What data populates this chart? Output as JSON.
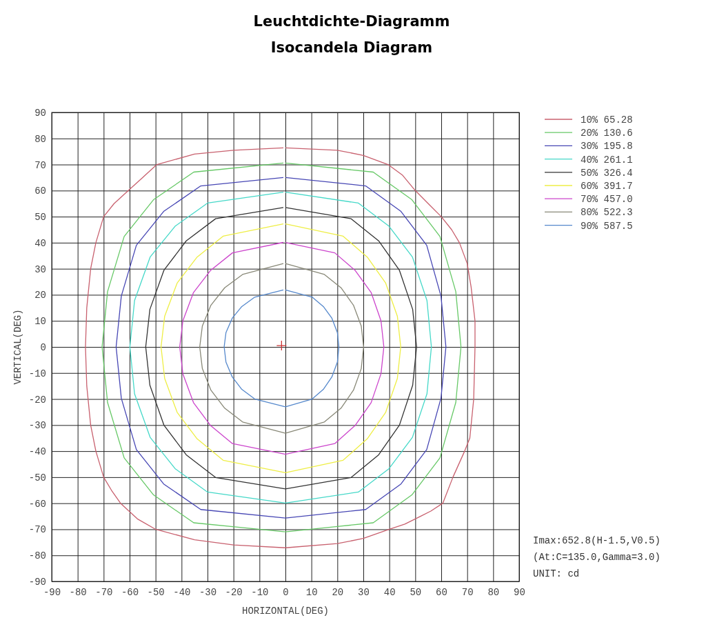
{
  "chart_data": {
    "type": "line",
    "title": "Leuchtdichte-Diagramm\nIsocandela Diagram",
    "xlabel": "HORIZONTAL(DEG)",
    "ylabel": "VERTICAL(DEG)",
    "xlim": [
      -90,
      90
    ],
    "ylim": [
      -90,
      90
    ],
    "xticks": [
      -90,
      -80,
      -70,
      -60,
      -50,
      -40,
      -30,
      -20,
      -10,
      0,
      10,
      20,
      30,
      40,
      50,
      60,
      70,
      80,
      90
    ],
    "yticks": [
      -90,
      -80,
      -70,
      -60,
      -50,
      -40,
      -30,
      -20,
      -10,
      0,
      10,
      20,
      30,
      40,
      50,
      60,
      70,
      80,
      90
    ],
    "grid": true,
    "legend": "top right",
    "line_style": "solid",
    "annotations": [
      "Imax:652.8(H-1.5,V0.5)",
      "(At:C=135.0,Gamma=3.0)",
      "UNIT: cd"
    ],
    "series": [
      {
        "name": "10% 65.28",
        "color": "#c8606e",
        "x": [
          0,
          20,
          30,
          39.5,
          45,
          50,
          55,
          60,
          64,
          67,
          70,
          71.5,
          73,
          73,
          72.5,
          71,
          69,
          64.5,
          60.6,
          56,
          52,
          46,
          40,
          30,
          20,
          0,
          -20,
          -35,
          -50,
          -57,
          -63.5,
          -67,
          -70,
          -73,
          -75,
          -76.5,
          -77,
          -76.5,
          -75,
          -73,
          -70,
          -66,
          -60.5,
          -55,
          -49.5,
          -35,
          -20,
          -0.8
        ],
        "values": [
          76.4,
          75.5,
          73.5,
          70,
          66,
          60,
          55,
          50,
          45,
          40,
          32,
          23,
          10,
          0,
          -20,
          -35,
          -40,
          -50,
          -60,
          -63,
          -65,
          -68,
          -70,
          -73.5,
          -75.5,
          -77.1,
          -76,
          -74,
          -70,
          -66,
          -60,
          -55,
          -50,
          -40,
          -30,
          -15,
          0,
          15,
          30,
          40,
          50,
          55,
          60,
          65,
          70,
          74,
          75.5,
          76.4
        ]
      },
      {
        "name": "20% 130.6",
        "color": "#66c866",
        "x": [
          0,
          33.8,
          48.7,
          59.5,
          65.6,
          67.6,
          65.6,
          59.5,
          48.7,
          33.8,
          0,
          -35.3,
          -50.8,
          -62.1,
          -68.5,
          -70.6,
          -68.5,
          -62.1,
          -50.8,
          -35.3,
          -0.8
        ],
        "values": [
          70.6,
          67.1,
          56.5,
          42.4,
          21.2,
          0,
          -21.3,
          -42.6,
          -56.8,
          -67.5,
          -71,
          -67.5,
          -56.8,
          -42.6,
          -21.3,
          0,
          21.2,
          42.4,
          56.5,
          67.1,
          70.6
        ]
      },
      {
        "name": "30% 195.8",
        "color": "#4646b4",
        "x": [
          0,
          30.9,
          44.5,
          54.4,
          59.9,
          61.8,
          59.9,
          54.4,
          44.5,
          30.9,
          0,
          -32.6,
          -46.9,
          -57.4,
          -63.2,
          -65.2,
          -63.2,
          -57.4,
          -46.9,
          -32.6,
          -0.8
        ],
        "values": [
          65,
          61.8,
          52,
          39,
          19.5,
          0,
          -19.7,
          -39.4,
          -52.6,
          -62.4,
          -65.7,
          -62.4,
          -52.6,
          -39.4,
          -19.7,
          0,
          19.5,
          39,
          52,
          61.8,
          65
        ]
      },
      {
        "name": "40% 261.1",
        "color": "#44d8c8",
        "x": [
          0,
          28.1,
          39.9,
          48.9,
          54.5,
          56.2,
          54.5,
          48.9,
          39.9,
          28.1,
          0,
          -30,
          -42.5,
          -52.1,
          -58.1,
          -59.9,
          -58.1,
          -52.1,
          -42.5,
          -30,
          -0.8
        ],
        "values": [
          59.4,
          55.2,
          46.3,
          34.5,
          17.8,
          0,
          -18,
          -34.7,
          -46.7,
          -55.7,
          -59.9,
          -55.7,
          -46.7,
          -34.7,
          -18,
          0,
          17.8,
          34.5,
          46.3,
          55.2,
          59.4
        ]
      },
      {
        "name": "50% 326.4",
        "color": "#333333",
        "x": [
          0,
          25.3,
          35.9,
          43.9,
          49,
          50.5,
          49,
          43.9,
          35.9,
          25.3,
          0,
          -26.9,
          -38.2,
          -46.8,
          -52.2,
          -53.8,
          -52.2,
          -46.8,
          -38.2,
          -26.9,
          -0.8
        ],
        "values": [
          53.5,
          49.2,
          40.7,
          29.4,
          14.4,
          0,
          -14.7,
          -30,
          -41.4,
          -50.1,
          -54.5,
          -50.1,
          -41.4,
          -30,
          -14.7,
          0,
          14.4,
          29.4,
          40.7,
          49.2,
          53.5
        ]
      },
      {
        "name": "60% 391.7",
        "color": "#eeee44",
        "x": [
          0,
          22.2,
          31.5,
          38.6,
          43.1,
          44.4,
          43.1,
          38.6,
          31.5,
          22.2,
          0,
          -24,
          -34,
          -41.7,
          -46.5,
          -47.9,
          -46.5,
          -41.7,
          -34,
          -24,
          -0.8
        ],
        "values": [
          47.2,
          42.5,
          34.5,
          24.5,
          11.8,
          0,
          -12.1,
          -25.1,
          -35.3,
          -43.5,
          -48.3,
          -43.5,
          -35.3,
          -25.1,
          -12.1,
          0,
          11.8,
          24.5,
          34.5,
          42.5,
          47.2
        ]
      },
      {
        "name": "70% 457.0",
        "color": "#cc44cc",
        "x": [
          0,
          19,
          26.9,
          33,
          36.8,
          37.9,
          36.8,
          33,
          26.9,
          19,
          0,
          -20.4,
          -28.9,
          -35.4,
          -39.5,
          -40.7,
          -39.5,
          -35.4,
          -28.9,
          -20.4,
          -0.8
        ],
        "values": [
          40.1,
          36.1,
          29.3,
          20.9,
          10,
          0,
          -10.3,
          -21.4,
          -30.1,
          -37.1,
          -41.2,
          -37.1,
          -30.1,
          -21.4,
          -10.3,
          0,
          10,
          20.9,
          29.3,
          36.1,
          40.1
        ]
      },
      {
        "name": "80% 522.3",
        "color": "#888877",
        "x": [
          0,
          15,
          21.4,
          26.2,
          29.2,
          30.1,
          29.2,
          26.2,
          21.4,
          15,
          0,
          -16.5,
          -23.4,
          -28.7,
          -32,
          -33,
          -32,
          -28.7,
          -23.4,
          -16.5,
          -0.8
        ],
        "values": [
          32,
          27.8,
          22.7,
          16,
          8,
          0,
          -8.3,
          -16.6,
          -23.5,
          -28.8,
          -33.1,
          -28.8,
          -23.5,
          -16.6,
          -8.3,
          0,
          8,
          16,
          22.7,
          27.8,
          32
        ]
      },
      {
        "name": "90% 587.5",
        "color": "#5588cc",
        "x": [
          0,
          10.3,
          14.6,
          17.9,
          20,
          20.6,
          20,
          17.9,
          14.6,
          10.3,
          0,
          -11.8,
          -16.8,
          -20.5,
          -22.9,
          -23.6,
          -22.9,
          -20.5,
          -16.8,
          -11.8,
          -0.8
        ],
        "values": [
          21.9,
          19.1,
          15.5,
          11,
          5.5,
          0,
          -5.8,
          -11.5,
          -16.3,
          -20,
          -23,
          -20,
          -16.3,
          -11.5,
          -5.8,
          0,
          5.5,
          11,
          15.5,
          19.1,
          21.9
        ]
      },
      {
        "type": "scatter",
        "marker": "cross",
        "color": "#cc3333",
        "x": [
          -1.5
        ],
        "values": [
          0.5
        ]
      }
    ]
  }
}
